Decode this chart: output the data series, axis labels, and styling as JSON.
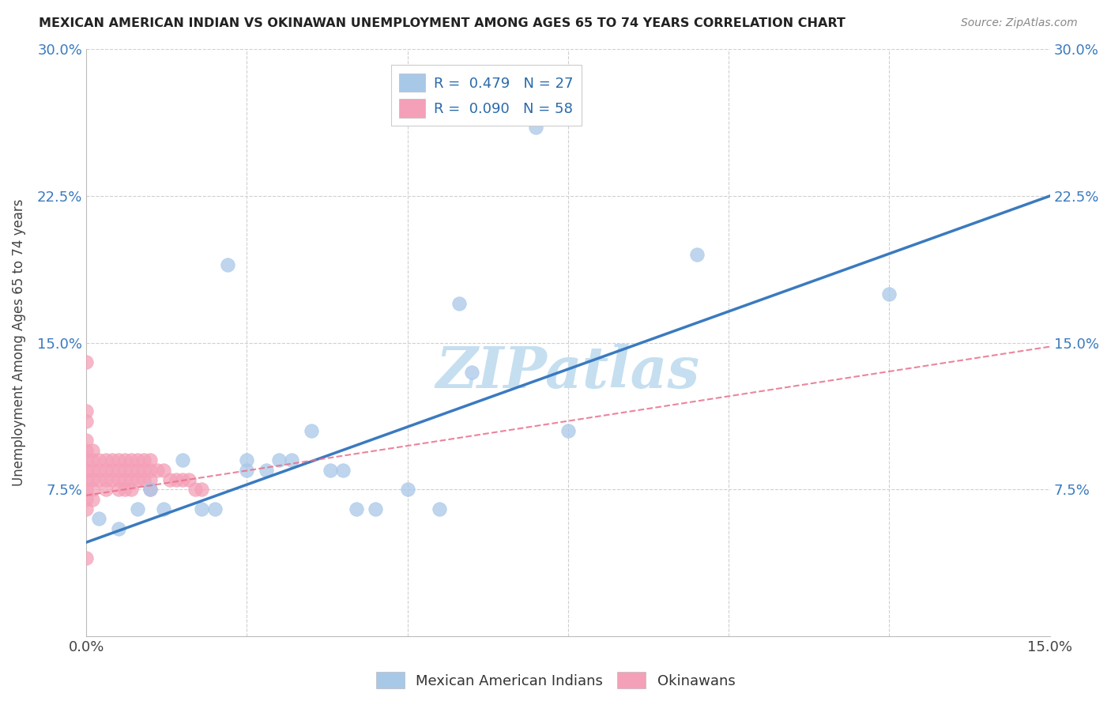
{
  "title": "MEXICAN AMERICAN INDIAN VS OKINAWAN UNEMPLOYMENT AMONG AGES 65 TO 74 YEARS CORRELATION CHART",
  "source": "Source: ZipAtlas.com",
  "ylabel": "Unemployment Among Ages 65 to 74 years",
  "xlim": [
    0,
    0.15
  ],
  "ylim": [
    0,
    0.3
  ],
  "xtick_positions": [
    0.0,
    0.025,
    0.05,
    0.075,
    0.1,
    0.125,
    0.15
  ],
  "ytick_positions": [
    0.0,
    0.075,
    0.15,
    0.225,
    0.3
  ],
  "xticklabels": [
    "0.0%",
    "",
    "",
    "",
    "",
    "",
    "15.0%"
  ],
  "yticklabels_left": [
    "",
    "7.5%",
    "15.0%",
    "22.5%",
    "30.0%"
  ],
  "yticklabels_right": [
    "",
    "7.5%",
    "15.0%",
    "22.5%",
    "30.0%"
  ],
  "legend_r1": "R =  0.479",
  "legend_n1": "N = 27",
  "legend_r2": "R =  0.090",
  "legend_n2": "N = 58",
  "blue_scatter_color": "#a8c8e8",
  "pink_scatter_color": "#f4a0b8",
  "blue_line_color": "#3a7abf",
  "pink_line_color": "#e8708a",
  "watermark": "ZIPatlas",
  "watermark_color": "#c5dff0",
  "grid_color": "#d0d0d0",
  "mexican_x": [
    0.002,
    0.005,
    0.008,
    0.01,
    0.012,
    0.015,
    0.018,
    0.02,
    0.022,
    0.025,
    0.025,
    0.028,
    0.03,
    0.032,
    0.035,
    0.038,
    0.04,
    0.042,
    0.045,
    0.05,
    0.055,
    0.058,
    0.06,
    0.07,
    0.075,
    0.095,
    0.125
  ],
  "mexican_y": [
    0.06,
    0.055,
    0.065,
    0.075,
    0.065,
    0.09,
    0.065,
    0.065,
    0.19,
    0.09,
    0.085,
    0.085,
    0.09,
    0.09,
    0.105,
    0.085,
    0.085,
    0.065,
    0.065,
    0.075,
    0.065,
    0.17,
    0.135,
    0.26,
    0.105,
    0.195,
    0.175
  ],
  "okinawan_x": [
    0.0,
    0.0,
    0.0,
    0.0,
    0.0,
    0.0,
    0.0,
    0.0,
    0.0,
    0.0,
    0.0,
    0.001,
    0.001,
    0.001,
    0.001,
    0.001,
    0.001,
    0.002,
    0.002,
    0.002,
    0.003,
    0.003,
    0.003,
    0.003,
    0.004,
    0.004,
    0.004,
    0.005,
    0.005,
    0.005,
    0.005,
    0.006,
    0.006,
    0.006,
    0.006,
    0.007,
    0.007,
    0.007,
    0.007,
    0.008,
    0.008,
    0.008,
    0.009,
    0.009,
    0.009,
    0.01,
    0.01,
    0.01,
    0.01,
    0.011,
    0.012,
    0.013,
    0.014,
    0.015,
    0.016,
    0.017,
    0.018,
    0.0
  ],
  "okinawan_y": [
    0.14,
    0.115,
    0.11,
    0.1,
    0.095,
    0.09,
    0.085,
    0.08,
    0.075,
    0.07,
    0.065,
    0.095,
    0.09,
    0.085,
    0.08,
    0.075,
    0.07,
    0.09,
    0.085,
    0.08,
    0.09,
    0.085,
    0.08,
    0.075,
    0.09,
    0.085,
    0.08,
    0.09,
    0.085,
    0.08,
    0.075,
    0.09,
    0.085,
    0.08,
    0.075,
    0.09,
    0.085,
    0.08,
    0.075,
    0.09,
    0.085,
    0.08,
    0.09,
    0.085,
    0.08,
    0.09,
    0.085,
    0.08,
    0.075,
    0.085,
    0.085,
    0.08,
    0.08,
    0.08,
    0.08,
    0.075,
    0.075,
    0.04
  ],
  "blue_line_x0": 0.0,
  "blue_line_y0": 0.048,
  "blue_line_x1": 0.15,
  "blue_line_y1": 0.225,
  "pink_line_x0": 0.0,
  "pink_line_y0": 0.072,
  "pink_line_x1": 0.15,
  "pink_line_y1": 0.148
}
